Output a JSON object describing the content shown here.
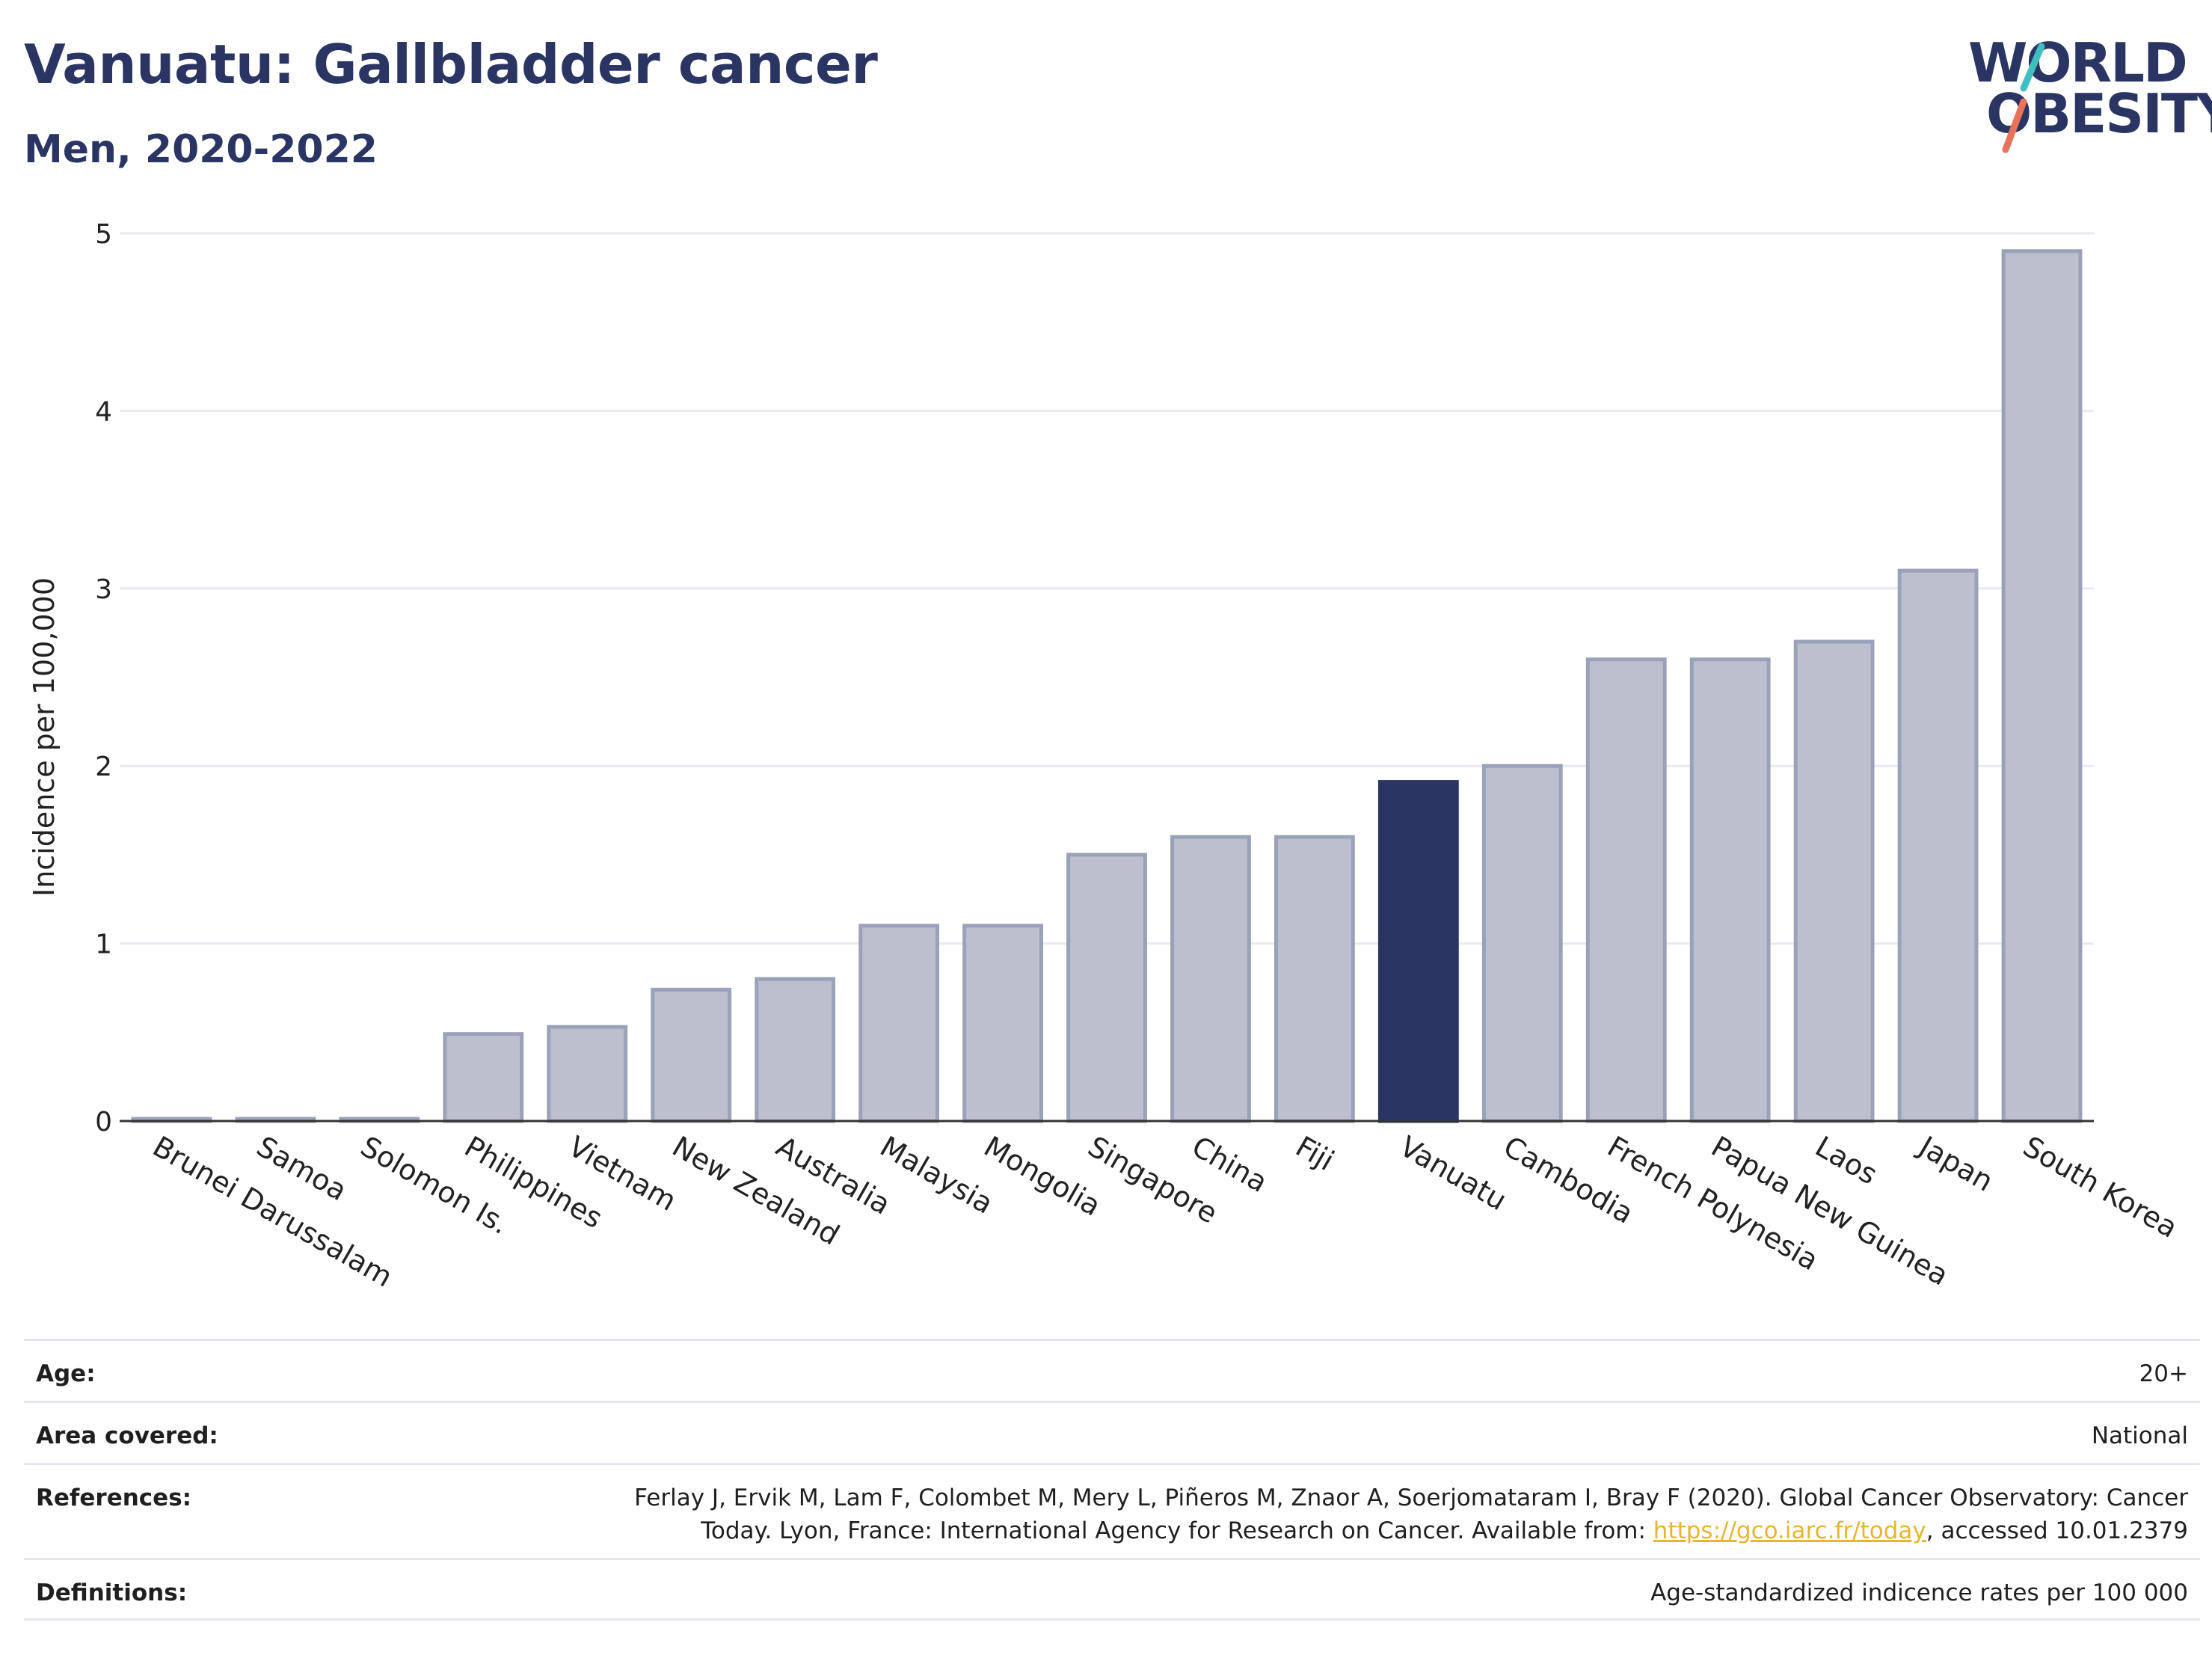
{
  "header": {
    "title": "Vanuatu: Gallbladder cancer",
    "subtitle": "Men, 2020-2022"
  },
  "logo": {
    "line1": "WORLD",
    "line2": "OBESITY",
    "accent_colors": [
      "#3fbfc0",
      "#e8735a"
    ]
  },
  "chart_data": {
    "type": "bar",
    "title": "Vanuatu: Gallbladder cancer",
    "subtitle": "Men, 2020-2022",
    "xlabel": "",
    "ylabel": "Incidence per 100,000",
    "ylim": [
      0,
      5
    ],
    "yticks": [
      0,
      1,
      2,
      3,
      4,
      5
    ],
    "grid": true,
    "categories": [
      "Brunei Darussalam",
      "Samoa",
      "Solomon Is.",
      "Philippines",
      "Vietnam",
      "New Zealand",
      "Australia",
      "Malaysia",
      "Mongolia",
      "Singapore",
      "China",
      "Fiji",
      "Vanuatu",
      "Cambodia",
      "French Polynesia",
      "Papua New Guinea",
      "Laos",
      "Japan",
      "South Korea"
    ],
    "values": [
      0.01,
      0.01,
      0.01,
      0.49,
      0.53,
      0.74,
      0.8,
      1.1,
      1.1,
      1.5,
      1.6,
      1.6,
      1.91,
      2.0,
      2.6,
      2.6,
      2.7,
      3.1,
      4.9
    ],
    "highlight": "Vanuatu",
    "colors": {
      "bar": "#bcc0ce",
      "bar_edge": "#9ba1b8",
      "highlight": "#2a3563"
    }
  },
  "info": {
    "age_label": "Age:",
    "age_value": "20+",
    "area_label": "Area covered:",
    "area_value": "National",
    "references_label": "References:",
    "references_text_1": "Ferlay J, Ervik M, Lam F, Colombet M, Mery L, Piñeros M, Znaor A, Soerjomataram I, Bray F (2020). Global Cancer Observatory: Cancer",
    "references_text_2": "Today. Lyon, France: International Agency for Research on Cancer. Available from: ",
    "references_link": "https://gco.iarc.fr/today",
    "references_text_3": ", accessed 10.01.2379",
    "definitions_label": "Definitions:",
    "definitions_value": "Age-standardized indicence rates per 100 000"
  }
}
